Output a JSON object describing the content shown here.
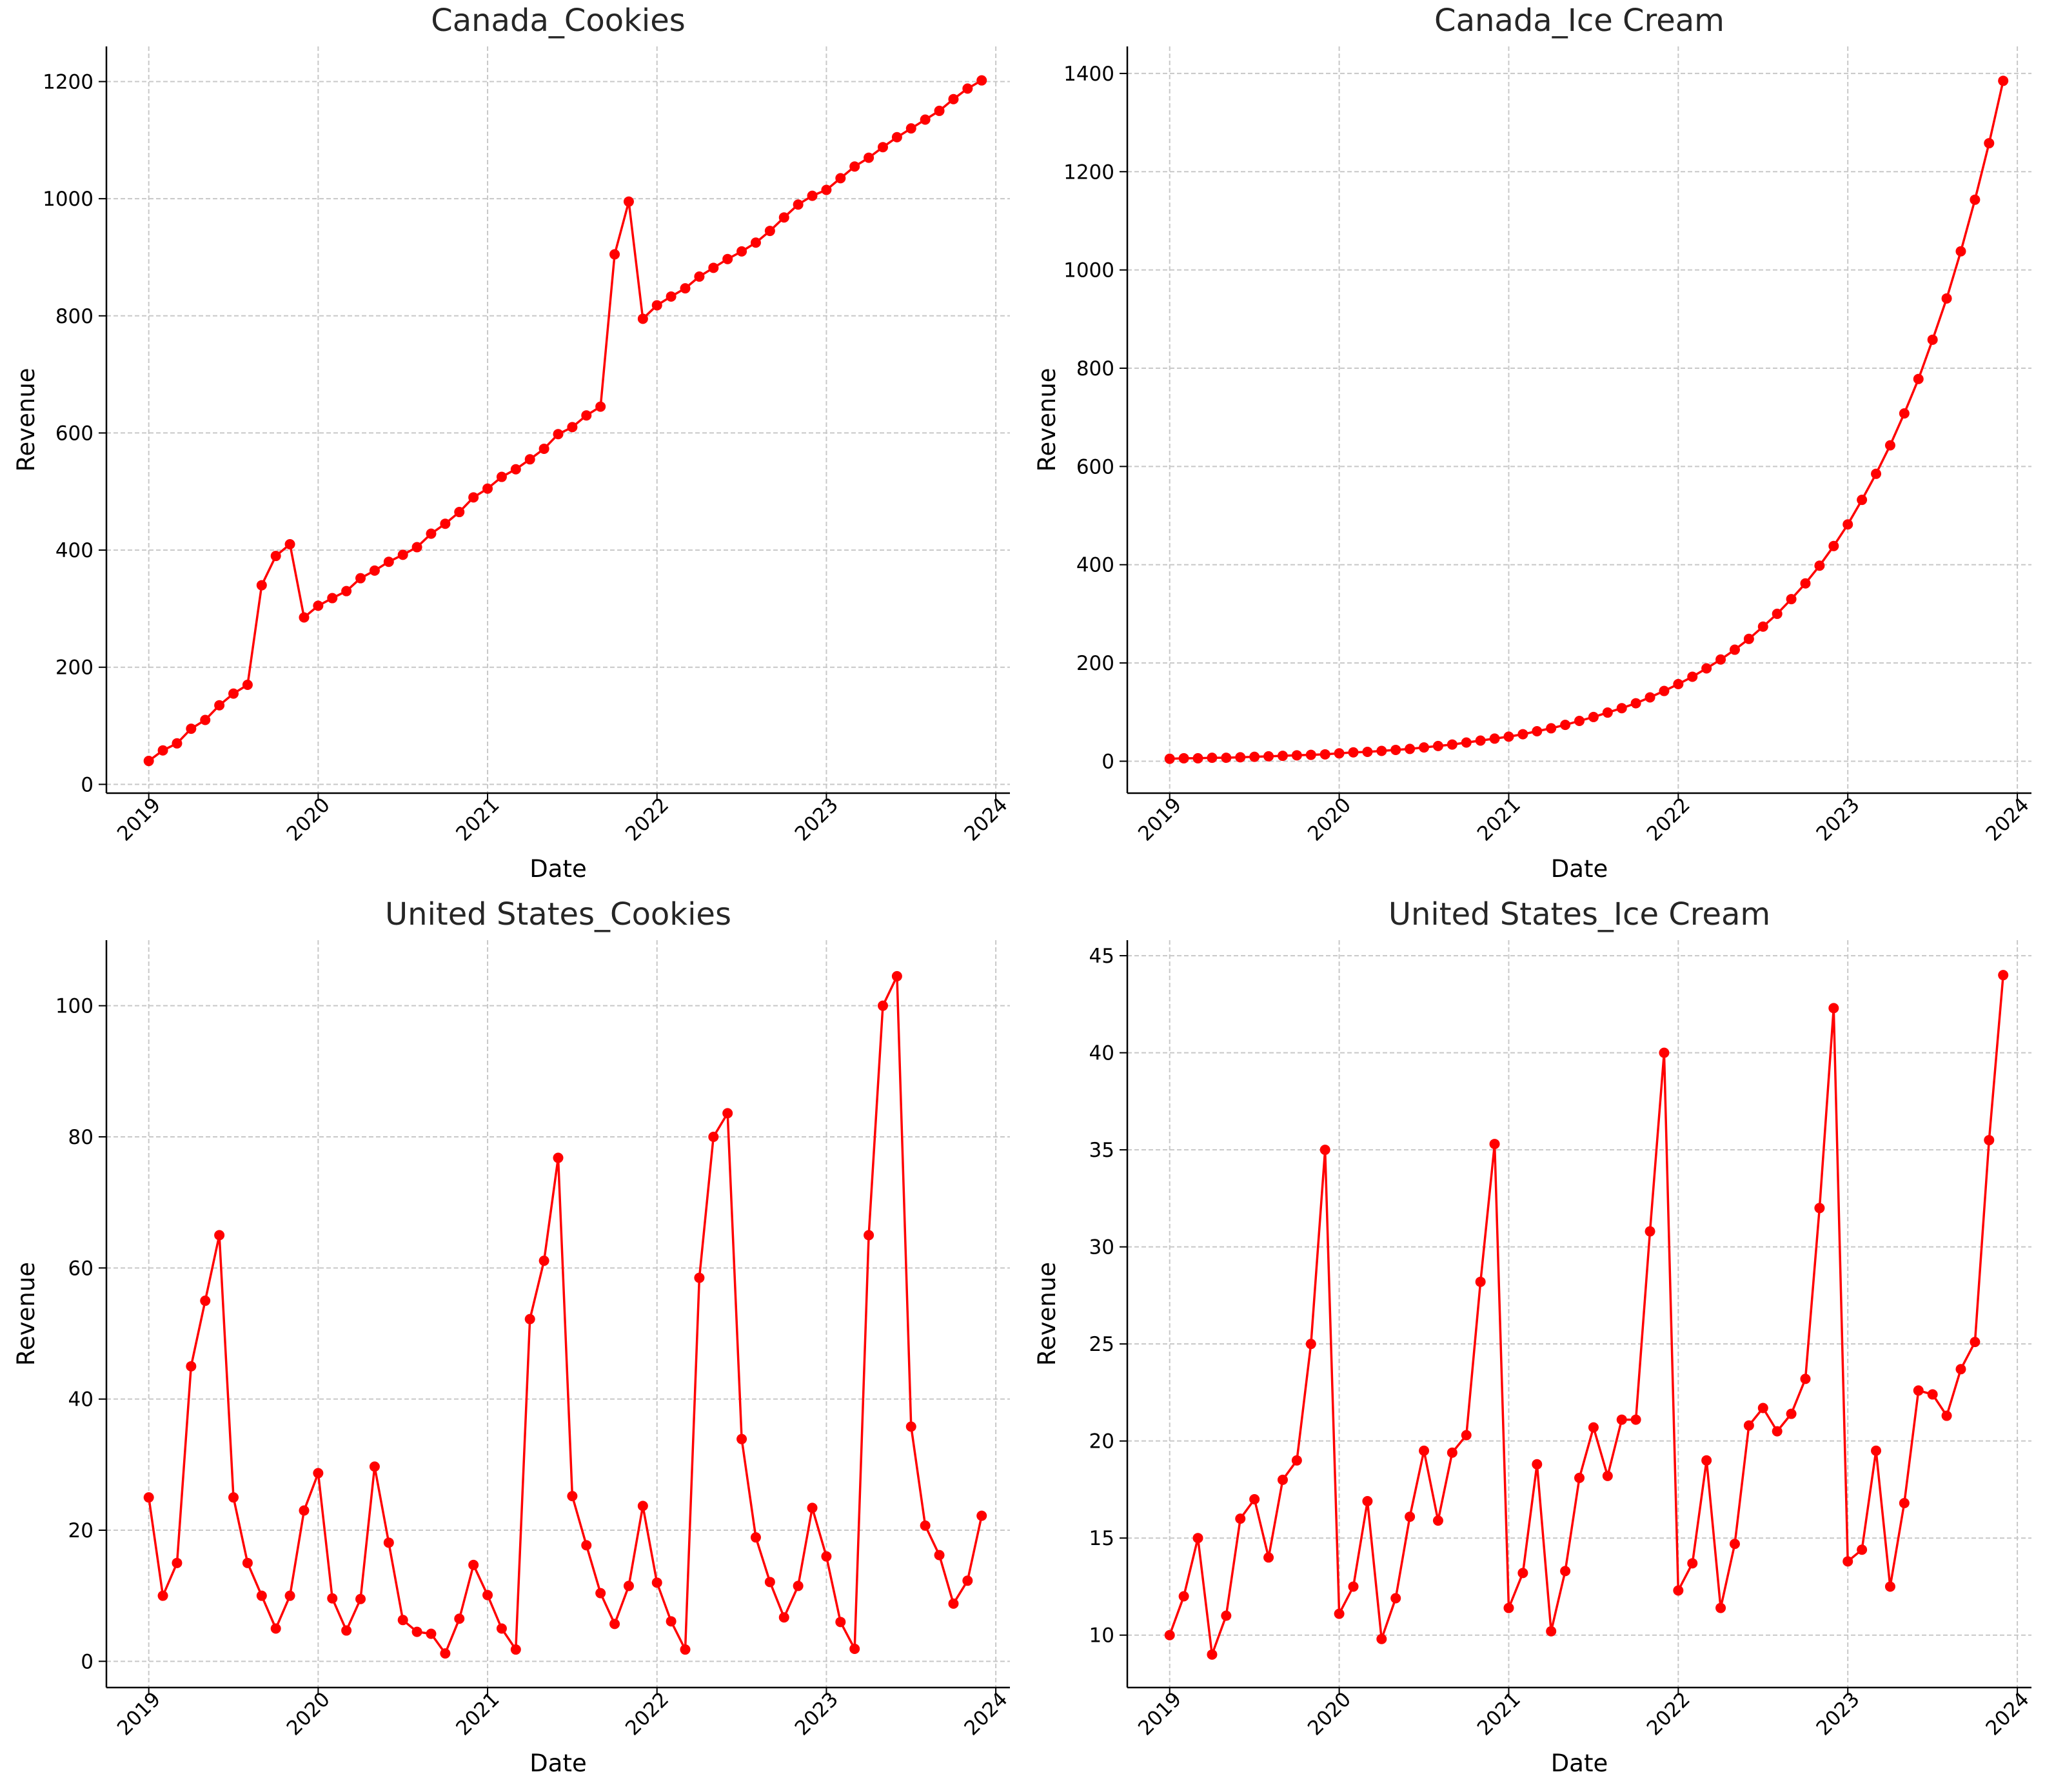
{
  "chart_data": [
    {
      "type": "line",
      "title": "Canada_Cookies",
      "xlabel": "Date",
      "ylabel": "Revenue",
      "x_start": "2019-01",
      "x_ticks": [
        "2019",
        "2020",
        "2021",
        "2022",
        "2023",
        "2024"
      ],
      "xlim": [
        "2018-10",
        "2024-02"
      ],
      "ylim": [
        -15,
        1260
      ],
      "y_ticks": [
        0,
        200,
        400,
        600,
        800,
        1000,
        1200
      ],
      "grid": true,
      "color": "#ff0000",
      "values": [
        40,
        58,
        70,
        95,
        110,
        135,
        155,
        170,
        340,
        390,
        410,
        285,
        305,
        318,
        330,
        352,
        365,
        380,
        392,
        405,
        428,
        445,
        465,
        490,
        505,
        525,
        538,
        555,
        573,
        598,
        610,
        630,
        645,
        905,
        995,
        795,
        818,
        833,
        847,
        867,
        882,
        897,
        910,
        925,
        945,
        968,
        990,
        1005,
        1015,
        1035,
        1055,
        1070,
        1088,
        1105,
        1120,
        1135,
        1150,
        1170,
        1188,
        1202
      ]
    },
    {
      "type": "line",
      "title": "Canada_Ice Cream",
      "xlabel": "Date",
      "ylabel": "Revenue",
      "x_start": "2019-01",
      "x_ticks": [
        "2019",
        "2020",
        "2021",
        "2022",
        "2023",
        "2024"
      ],
      "xlim": [
        "2018-10",
        "2024-02"
      ],
      "ylim": [
        -65,
        1455
      ],
      "y_ticks": [
        0,
        200,
        400,
        600,
        800,
        1000,
        1200,
        1400
      ],
      "grid": true,
      "color": "#ff0000",
      "values": [
        5,
        6,
        6,
        7,
        7,
        8,
        9,
        10,
        11,
        12,
        13,
        14,
        16,
        18,
        19,
        21,
        23,
        25,
        28,
        31,
        34,
        38,
        42,
        46,
        50,
        55,
        61,
        67,
        74,
        82,
        90,
        99,
        108,
        118,
        130,
        143,
        157,
        172,
        189,
        207,
        227,
        249,
        274,
        300,
        330,
        362,
        398,
        438,
        482,
        532,
        585,
        643,
        708,
        778,
        858,
        942,
        1038,
        1143,
        1258,
        1385
      ]
    },
    {
      "type": "line",
      "title": "United States_Cookies",
      "xlabel": "Date",
      "ylabel": "Revenue",
      "x_start": "2019-01",
      "x_ticks": [
        "2019",
        "2020",
        "2021",
        "2022",
        "2023",
        "2024"
      ],
      "xlim": [
        "2018-10",
        "2024-02"
      ],
      "ylim": [
        -4,
        110
      ],
      "y_ticks": [
        0,
        20,
        40,
        60,
        80,
        100
      ],
      "grid": true,
      "color": "#ff0000",
      "values": [
        25,
        10,
        15,
        45,
        55,
        65,
        25,
        15,
        10,
        5,
        10,
        23,
        28.7,
        9.6,
        4.7,
        9.5,
        29.7,
        18.1,
        6.3,
        4.5,
        4.2,
        1.2,
        6.5,
        14.7,
        10.1,
        5,
        1.8,
        52.2,
        61.1,
        76.8,
        25.2,
        17.7,
        10.4,
        5.7,
        11.5,
        23.7,
        12,
        6.1,
        1.8,
        58.5,
        80,
        83.6,
        33.9,
        18.9,
        12.1,
        6.7,
        11.5,
        23.4,
        16,
        6,
        1.9,
        65,
        100,
        104.5,
        35.8,
        20.7,
        16.2,
        8.8,
        12.3,
        22.2
      ]
    },
    {
      "type": "line",
      "title": "United States_Ice Cream",
      "xlabel": "Date",
      "ylabel": "Revenue",
      "x_start": "2019-01",
      "x_ticks": [
        "2019",
        "2020",
        "2021",
        "2022",
        "2023",
        "2024"
      ],
      "xlim": [
        "2018-10",
        "2024-02"
      ],
      "ylim": [
        7.3,
        45.8
      ],
      "y_ticks": [
        10,
        15,
        20,
        25,
        30,
        35,
        40,
        45
      ],
      "grid": true,
      "color": "#ff0000",
      "values": [
        10,
        12,
        15,
        9,
        11,
        16,
        17,
        14,
        18,
        19,
        25,
        35,
        11.1,
        12.5,
        16.9,
        9.8,
        11.9,
        16.1,
        19.5,
        15.9,
        19.4,
        20.3,
        28.2,
        35.3,
        11.4,
        13.2,
        18.8,
        10.2,
        13.3,
        18.1,
        20.7,
        18.2,
        21.1,
        21.1,
        30.8,
        40,
        12.3,
        13.7,
        19,
        11.4,
        14.7,
        20.8,
        21.7,
        20.5,
        21.4,
        23.2,
        32,
        42.3,
        13.8,
        14.4,
        19.5,
        12.5,
        16.8,
        22.6,
        22.4,
        21.3,
        23.7,
        25.1,
        35.5,
        44
      ]
    }
  ]
}
